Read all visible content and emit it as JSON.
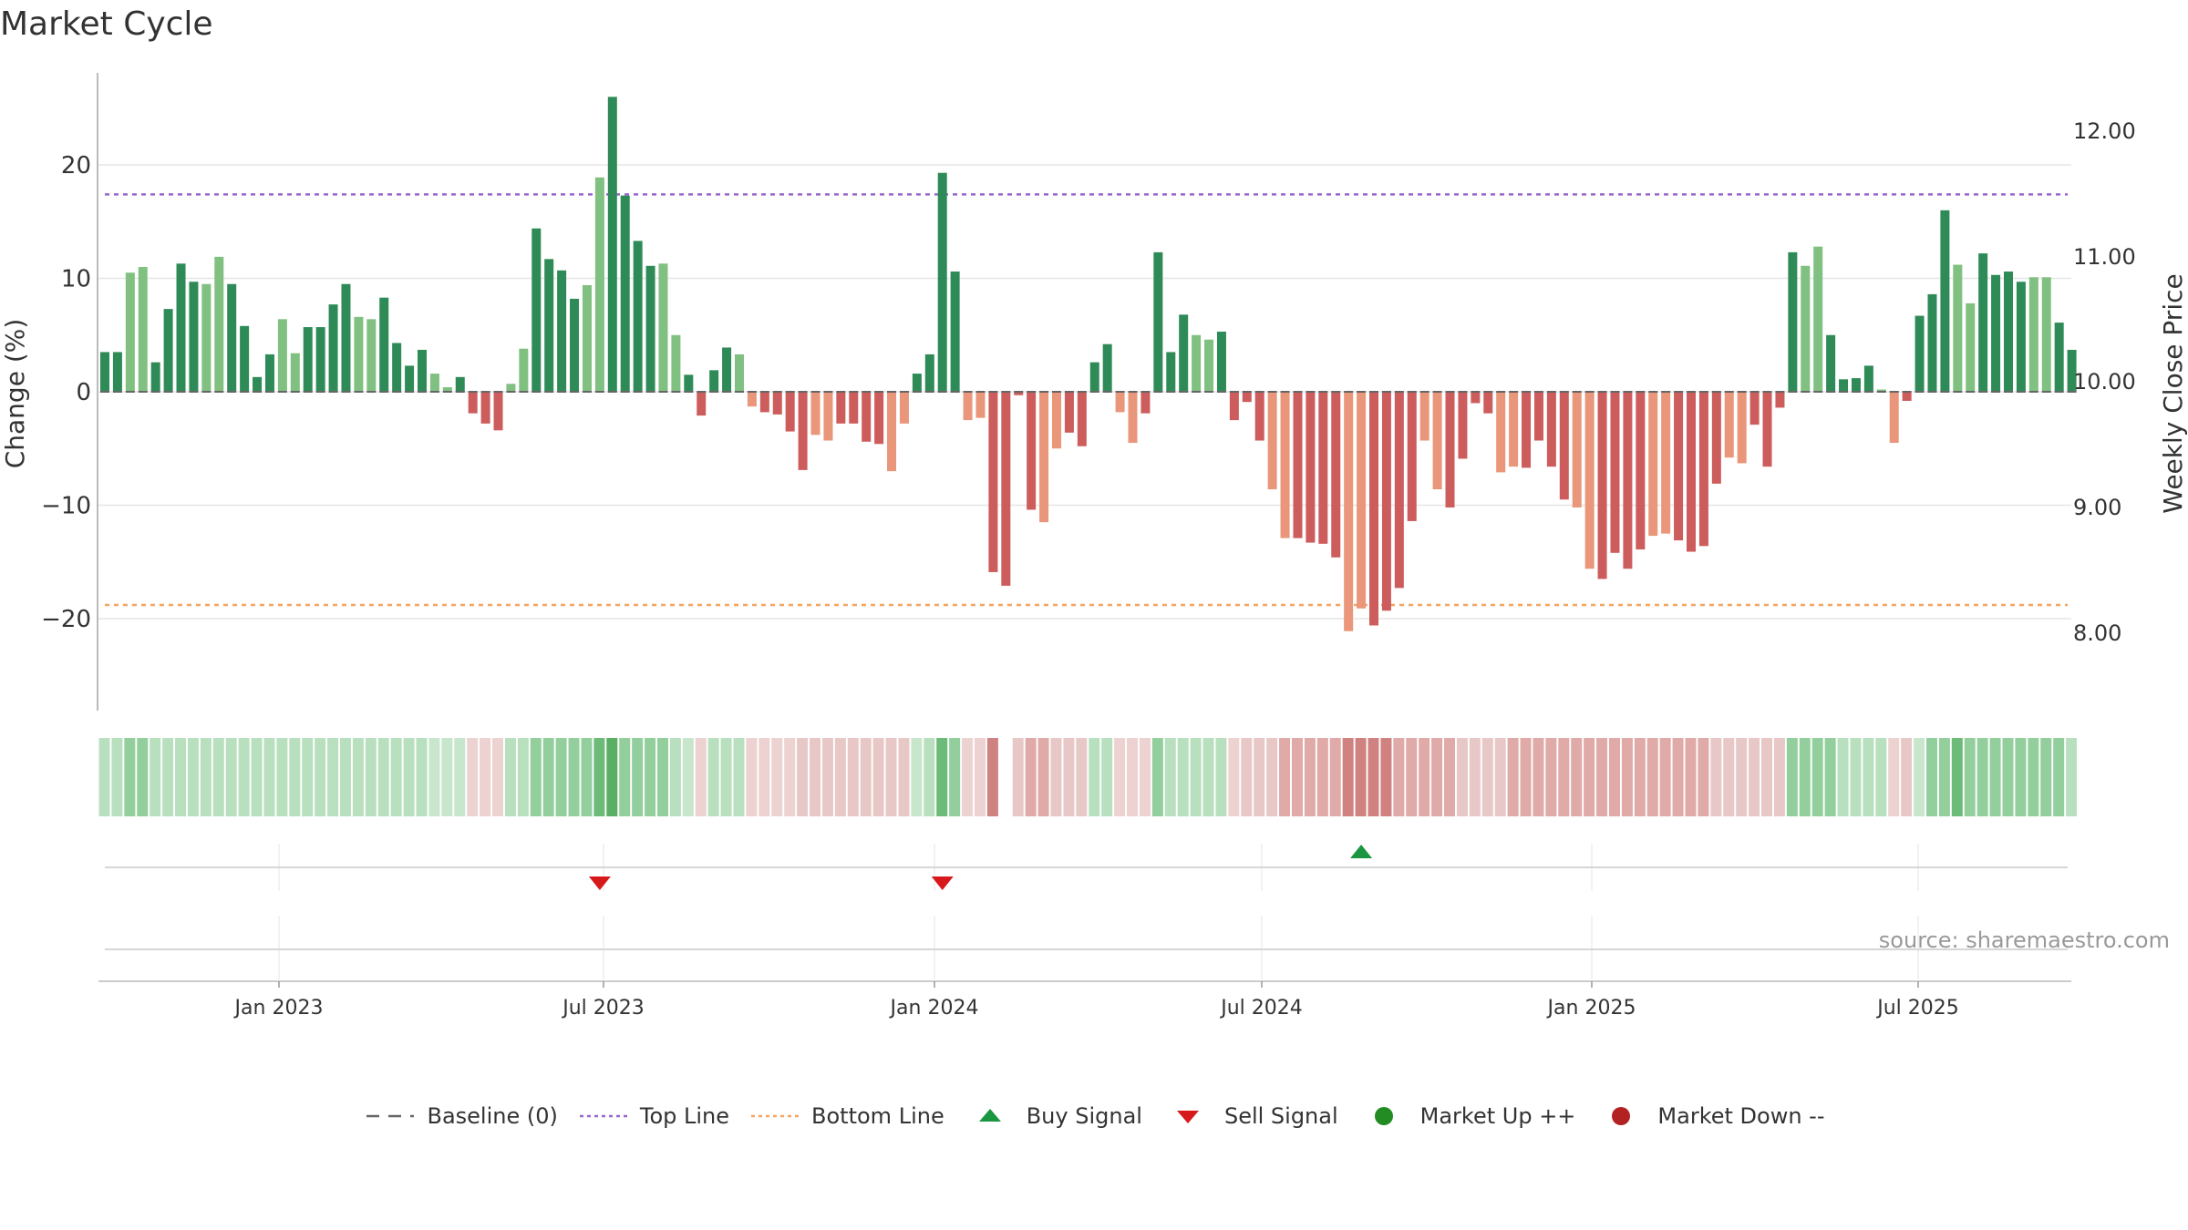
{
  "chart_data": {
    "type": "bar",
    "title": "Market Cycle",
    "ylabel_left": "Change (%)",
    "ylabel_right": "Weekly Close Price",
    "source": "source: sharemaestro.com",
    "y_left_ticks": [
      "20",
      "10",
      "0",
      "−10",
      "−20"
    ],
    "y_left_tick_values": [
      20,
      10,
      0,
      -10,
      -20
    ],
    "y_right_ticks": [
      "12.00",
      "11.00",
      "10.00",
      "9.00",
      "8.00"
    ],
    "x_ticks": [
      "Jan 2023",
      "Jul 2023",
      "Jan 2024",
      "Jul 2024",
      "Jan 2025",
      "Jul 2025"
    ],
    "ylim": [
      -28,
      26.5
    ],
    "top_line": 17.4,
    "bottom_line": -18.8,
    "grid": true,
    "legend_position": "bottom",
    "values": [
      3.5,
      3.5,
      10.5,
      11,
      2.6,
      7.3,
      11.3,
      9.7,
      9.5,
      11.9,
      9.5,
      5.8,
      1.3,
      3.3,
      6.4,
      3.4,
      5.7,
      5.7,
      7.7,
      9.5,
      6.6,
      6.4,
      8.3,
      4.3,
      2.3,
      3.7,
      1.6,
      0.4,
      1.3,
      -1.9,
      -2.8,
      -3.4,
      0.7,
      3.8,
      14.4,
      11.7,
      10.7,
      8.2,
      9.4,
      18.9,
      26,
      17.3,
      13.3,
      11.1,
      11.3,
      5,
      1.5,
      -2.1,
      1.9,
      3.9,
      3.3,
      -1.3,
      -1.8,
      -2.0,
      -3.5,
      -6.9,
      -3.8,
      -4.3,
      -2.8,
      -2.8,
      -4.4,
      -4.6,
      -7.0,
      -2.8,
      1.6,
      3.3,
      19.3,
      10.6,
      -2.5,
      -2.3,
      -15.9,
      -17.1,
      -0.3,
      -10.4,
      -11.5,
      -5.0,
      -3.6,
      -4.8,
      2.6,
      4.2,
      -1.8,
      -4.5,
      -1.9,
      12.3,
      3.5,
      6.8,
      5.0,
      4.6,
      5.3,
      -2.5,
      -0.9,
      -4.3,
      -8.6,
      -12.9,
      -12.9,
      -13.3,
      -13.4,
      -14.6,
      -21.1,
      -19.1,
      -20.6,
      -19.3,
      -17.3,
      -11.4,
      -4.3,
      -8.6,
      -10.2,
      -5.9,
      -1.0,
      -1.9,
      -7.1,
      -6.6,
      -6.7,
      -4.3,
      -6.6,
      -9.5,
      -10.2,
      -15.6,
      -16.5,
      -14.2,
      -15.6,
      -13.9,
      -12.7,
      -12.5,
      -13.1,
      -14.1,
      -13.6,
      -8.1,
      -5.8,
      -6.3,
      -2.9,
      -6.6,
      -1.4,
      12.3,
      11.1,
      12.8,
      5.0,
      1.1,
      1.2,
      2.3,
      0.2,
      -4.5,
      -0.8,
      6.7,
      8.6,
      16.0,
      11.2,
      7.8,
      12.2,
      10.3,
      10.6,
      9.7,
      10.1,
      10.1,
      6.1,
      3.7
    ],
    "strength_levels": [
      1,
      1,
      2,
      2,
      1,
      1,
      1,
      1,
      1,
      1,
      1,
      1,
      1,
      1,
      1,
      1,
      1,
      1,
      1,
      1,
      1,
      1,
      1,
      1,
      1,
      1,
      0,
      0,
      0,
      0,
      0,
      0,
      1,
      1,
      2,
      2,
      2,
      2,
      2,
      3,
      4,
      2,
      2,
      2,
      2,
      1,
      0,
      0,
      1,
      1,
      1,
      0,
      0,
      0,
      0,
      1,
      1,
      1,
      1,
      1,
      1,
      1,
      1,
      1,
      0,
      1,
      3,
      2,
      0,
      0,
      3,
      -1,
      1,
      2,
      2,
      1,
      1,
      1,
      1,
      1,
      0,
      0,
      0,
      2,
      1,
      1,
      1,
      1,
      1,
      0,
      1,
      1,
      1,
      2,
      2,
      2,
      2,
      2,
      3,
      3,
      3,
      3,
      2,
      2,
      2,
      2,
      2,
      1,
      1,
      1,
      1,
      2,
      2,
      2,
      2,
      2,
      2,
      2,
      2,
      2,
      2,
      2,
      2,
      2,
      2,
      2,
      2,
      1,
      1,
      1,
      1,
      1,
      1,
      2,
      2,
      2,
      2,
      1,
      1,
      1,
      1,
      0,
      1,
      0,
      2,
      2,
      3,
      2,
      2,
      2,
      2,
      2,
      2,
      2,
      2,
      1,
      1
    ],
    "buy_signals": [
      99
    ],
    "sell_signals": [
      39,
      66
    ],
    "colors": {
      "up_strong": "#2e8b57",
      "up_light": "#80c080",
      "down_strong": "#cd5c5c",
      "down_light": "#e9967a",
      "top_line": "#9966cc",
      "bottom_line": "#f4a460",
      "buy": "#1a9641",
      "sell": "#d7191c",
      "market_up": "#228b22",
      "market_down": "#b22222",
      "baseline": "#666666"
    }
  },
  "legend": [
    {
      "label": "Baseline (0)",
      "icon": "dash-line-icon",
      "color": "#666666"
    },
    {
      "label": "Top Line",
      "icon": "dotted-line-icon",
      "color": "#9966cc"
    },
    {
      "label": "Bottom Line",
      "icon": "dotted-line-icon",
      "color": "#f4a460"
    },
    {
      "label": "Buy Signal",
      "icon": "triangle-up-icon",
      "color": "#1a9641"
    },
    {
      "label": "Sell Signal",
      "icon": "triangle-down-icon",
      "color": "#d7191c"
    },
    {
      "label": "Market Up ++",
      "icon": "circle-icon",
      "color": "#228b22"
    },
    {
      "label": "Market Down --",
      "icon": "circle-icon",
      "color": "#b22222"
    }
  ]
}
